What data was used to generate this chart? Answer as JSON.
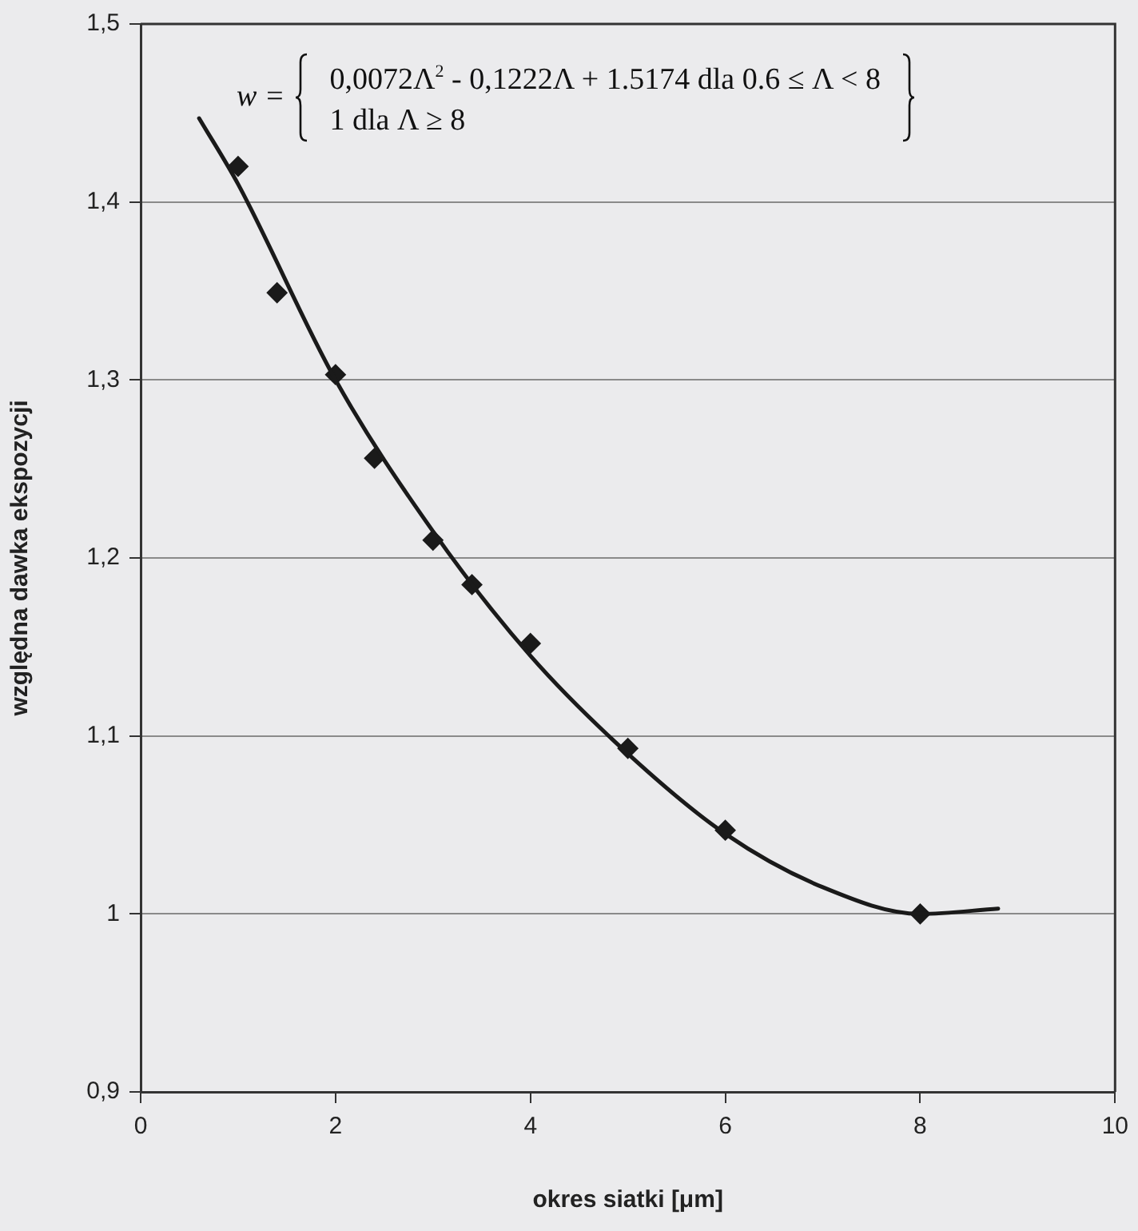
{
  "chart_data": {
    "type": "scatter",
    "xlabel": "okres siatki [μm]",
    "ylabel": "względna dawka ekspozycji",
    "annotations": [
      "w =",
      "0,0072Λ$^{2}$ - 0,1222Λ + 1.5174 dla 0.6 ≤ Λ < 8",
      "1 dla Λ ≥ 8"
    ],
    "series": [
      {
        "type": "line",
        "color": "#1a1a1a",
        "marker": "none",
        "line_style": "solid",
        "x": [
          0.6,
          1,
          2,
          3,
          4,
          5,
          6,
          7,
          8,
          8.8
        ],
        "values": [
          1.447,
          1.41,
          1.3,
          1.215,
          1.145,
          1.09,
          1.045,
          1.015,
          1.0,
          1.003
        ]
      },
      {
        "type": "scatter",
        "color": "#1a1a1a",
        "marker": "diamond",
        "x": [
          1,
          1.4,
          2,
          2.4,
          3,
          3.4,
          4,
          5,
          6,
          8
        ],
        "values": [
          1.42,
          1.349,
          1.303,
          1.256,
          1.21,
          1.185,
          1.152,
          1.093,
          1.047,
          1.0
        ]
      }
    ],
    "xlim": [
      0,
      10
    ],
    "xticks": [
      0,
      2,
      4,
      6,
      8,
      10
    ],
    "ylim": [
      0.9,
      1.5
    ],
    "yticks": [
      {
        "value": 0.9,
        "label": "0,9"
      },
      1,
      {
        "value": 1.1,
        "label": "1,1"
      },
      {
        "value": 1.2,
        "label": "1,2"
      },
      {
        "value": 1.3,
        "label": "1,3"
      },
      {
        "value": 1.4,
        "label": "1,4"
      },
      {
        "value": 1.5,
        "label": "1,5"
      }
    ],
    "grid": "y"
  }
}
